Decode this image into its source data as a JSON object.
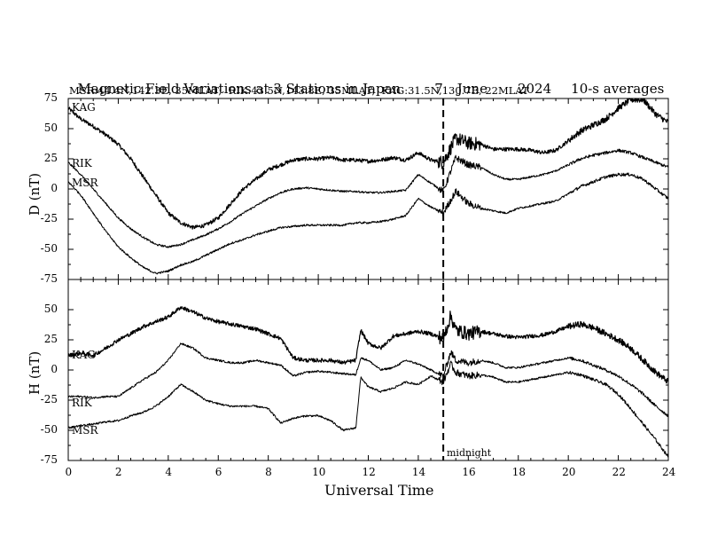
{
  "title": {
    "main": "Magnetic Field Variations at 3 Stations in Japan",
    "day": "7",
    "month": "June",
    "year": "2024",
    "averaging": "10-s averages",
    "stations_line": "MSR:44.4N,142.3E, 35MLAT;  RIK:43.5N,143.8E, 35MLAT;  KAG:31.5N,130.7E, 22MLAT"
  },
  "x_axis": {
    "label": "Universal Time",
    "ticks": [
      "0",
      "2",
      "4",
      "6",
      "8",
      "10",
      "12",
      "14",
      "16",
      "18",
      "20",
      "22",
      "24"
    ],
    "range": [
      0,
      24
    ]
  },
  "midnight_label": "midnight",
  "colors": {
    "traces": "#000000",
    "background": "#ffffff"
  },
  "chart_data": [
    {
      "type": "line",
      "ylabel": "D (nT)",
      "ylim": [
        -75,
        75
      ],
      "yticks": [
        "75",
        "50",
        "25",
        "0",
        "-25",
        "-50",
        "-75"
      ],
      "grid": false,
      "marker_line_x": 15,
      "series": [
        {
          "name": "KAG",
          "x": [
            0,
            0.5,
            1,
            1.5,
            2,
            2.5,
            3,
            3.5,
            4,
            4.5,
            5,
            5.5,
            6,
            6.5,
            7,
            7.5,
            8,
            8.5,
            9,
            9.5,
            10,
            10.5,
            11,
            11.5,
            12,
            12.5,
            13,
            13.5,
            14,
            14.5,
            15,
            15.5,
            16,
            16.5,
            17,
            17.5,
            18,
            18.5,
            19,
            19.5,
            20,
            20.5,
            21,
            21.5,
            22,
            22.5,
            23,
            23.5,
            24
          ],
          "y": [
            67,
            58,
            52,
            45,
            37,
            25,
            10,
            -5,
            -20,
            -28,
            -32,
            -30,
            -24,
            -12,
            0,
            8,
            16,
            20,
            24,
            25,
            25,
            26,
            24,
            24,
            23,
            24,
            26,
            24,
            30,
            24,
            22,
            42,
            38,
            37,
            33,
            33,
            33,
            32,
            30,
            32,
            40,
            48,
            53,
            58,
            67,
            74,
            74,
            62,
            55
          ]
        },
        {
          "name": "RIK",
          "x": [
            0,
            0.5,
            1,
            1.5,
            2,
            2.5,
            3,
            3.5,
            4,
            4.5,
            5,
            5.5,
            6,
            6.5,
            7,
            7.5,
            8,
            8.5,
            9,
            9.5,
            10,
            10.5,
            11,
            11.5,
            12,
            12.5,
            13,
            13.5,
            14,
            14.5,
            15,
            15.5,
            16,
            16.5,
            17,
            17.5,
            18,
            18.5,
            19,
            19.5,
            20,
            20.5,
            21,
            21.5,
            22,
            22.5,
            23,
            23.5,
            24
          ],
          "y": [
            22,
            12,
            0,
            -12,
            -24,
            -33,
            -40,
            -46,
            -48,
            -46,
            -42,
            -38,
            -33,
            -27,
            -20,
            -14,
            -8,
            -3,
            0,
            1,
            0,
            -1,
            -2,
            -2,
            -3,
            -3,
            -2,
            -1,
            12,
            5,
            -2,
            26,
            20,
            18,
            12,
            8,
            8,
            10,
            12,
            15,
            20,
            25,
            28,
            30,
            32,
            30,
            26,
            22,
            18
          ]
        },
        {
          "name": "MSR",
          "x": [
            0,
            0.5,
            1,
            1.5,
            2,
            2.5,
            3,
            3.5,
            4,
            4.5,
            5,
            5.5,
            6,
            6.5,
            7,
            7.5,
            8,
            8.5,
            9,
            9.5,
            10,
            10.5,
            11,
            11.5,
            12,
            12.5,
            13,
            13.5,
            14,
            14.5,
            15,
            15.5,
            16,
            16.5,
            17,
            17.5,
            18,
            18.5,
            19,
            19.5,
            20,
            20.5,
            21,
            21.5,
            22,
            22.5,
            23,
            23.5,
            24
          ],
          "y": [
            6,
            -5,
            -20,
            -35,
            -48,
            -57,
            -65,
            -70,
            -68,
            -63,
            -60,
            -55,
            -50,
            -45,
            -42,
            -38,
            -35,
            -32,
            -31,
            -30,
            -30,
            -30,
            -30,
            -28,
            -28,
            -27,
            -25,
            -22,
            -8,
            -15,
            -20,
            -2,
            -12,
            -16,
            -18,
            -20,
            -16,
            -14,
            -12,
            -10,
            -4,
            2,
            6,
            10,
            12,
            12,
            8,
            0,
            -8
          ]
        }
      ]
    },
    {
      "type": "line",
      "ylabel": "H (nT)",
      "ylim": [
        -75,
        75
      ],
      "yticks": [
        "50",
        "25",
        "0",
        "-25",
        "-50",
        "-75"
      ],
      "grid": false,
      "marker_line_x": 15,
      "series": [
        {
          "name": "KAG",
          "x": [
            0,
            0.5,
            1,
            1.5,
            2,
            2.5,
            3,
            3.5,
            4,
            4.5,
            5,
            5.5,
            6,
            6.5,
            7,
            7.5,
            8,
            8.5,
            9,
            9.5,
            10,
            10.5,
            11,
            11.5,
            11.7,
            12,
            12.5,
            13,
            13.5,
            14,
            14.5,
            15,
            15.3,
            15.5,
            16,
            16.5,
            17,
            17.5,
            18,
            18.5,
            19,
            19.5,
            20,
            20.5,
            21,
            21.5,
            22,
            22.5,
            23,
            23.5,
            24
          ],
          "y": [
            12,
            14,
            12,
            18,
            25,
            30,
            36,
            40,
            44,
            52,
            48,
            43,
            40,
            38,
            36,
            34,
            30,
            26,
            10,
            8,
            8,
            8,
            6,
            8,
            33,
            22,
            18,
            28,
            30,
            32,
            30,
            26,
            45,
            33,
            30,
            32,
            30,
            28,
            27,
            28,
            29,
            32,
            36,
            38,
            35,
            30,
            25,
            18,
            8,
            -2,
            -10
          ]
        },
        {
          "name": "RIK",
          "x": [
            0,
            0.5,
            1,
            1.5,
            2,
            2.5,
            3,
            3.5,
            4,
            4.5,
            5,
            5.5,
            6,
            6.5,
            7,
            7.5,
            8,
            8.5,
            9,
            9.5,
            10,
            10.5,
            11,
            11.5,
            11.7,
            12,
            12.5,
            13,
            13.5,
            14,
            14.5,
            15,
            15.3,
            15.5,
            16,
            16.5,
            17,
            17.5,
            18,
            18.5,
            19,
            19.5,
            20,
            20.5,
            21,
            21.5,
            22,
            22.5,
            23,
            23.5,
            24
          ],
          "y": [
            -22,
            -22,
            -23,
            -22,
            -22,
            -15,
            -8,
            -2,
            8,
            22,
            18,
            10,
            8,
            6,
            6,
            8,
            6,
            4,
            -5,
            -2,
            -1,
            -2,
            -3,
            -4,
            10,
            8,
            0,
            2,
            8,
            5,
            0,
            -5,
            15,
            8,
            6,
            8,
            6,
            2,
            2,
            4,
            6,
            8,
            10,
            8,
            4,
            0,
            -5,
            -12,
            -20,
            -30,
            -38
          ]
        },
        {
          "name": "MSR",
          "x": [
            0,
            0.5,
            1,
            1.5,
            2,
            2.5,
            3,
            3.5,
            4,
            4.5,
            5,
            5.5,
            6,
            6.5,
            7,
            7.5,
            8,
            8.5,
            9,
            9.5,
            10,
            10.5,
            11,
            11.5,
            11.7,
            12,
            12.5,
            13,
            13.5,
            14,
            14.5,
            15,
            15.3,
            15.5,
            16,
            16.5,
            17,
            17.5,
            18,
            18.5,
            19,
            19.5,
            20,
            20.5,
            21,
            21.5,
            22,
            22.5,
            23,
            23.5,
            24
          ],
          "y": [
            -48,
            -46,
            -45,
            -43,
            -42,
            -38,
            -35,
            -30,
            -22,
            -12,
            -18,
            -25,
            -28,
            -30,
            -30,
            -30,
            -32,
            -44,
            -40,
            -38,
            -38,
            -42,
            -50,
            -48,
            -6,
            -14,
            -18,
            -15,
            -10,
            -12,
            -5,
            -10,
            5,
            -2,
            -5,
            -4,
            -6,
            -10,
            -10,
            -8,
            -6,
            -4,
            -2,
            -4,
            -8,
            -12,
            -20,
            -32,
            -45,
            -58,
            -72
          ]
        }
      ]
    }
  ]
}
